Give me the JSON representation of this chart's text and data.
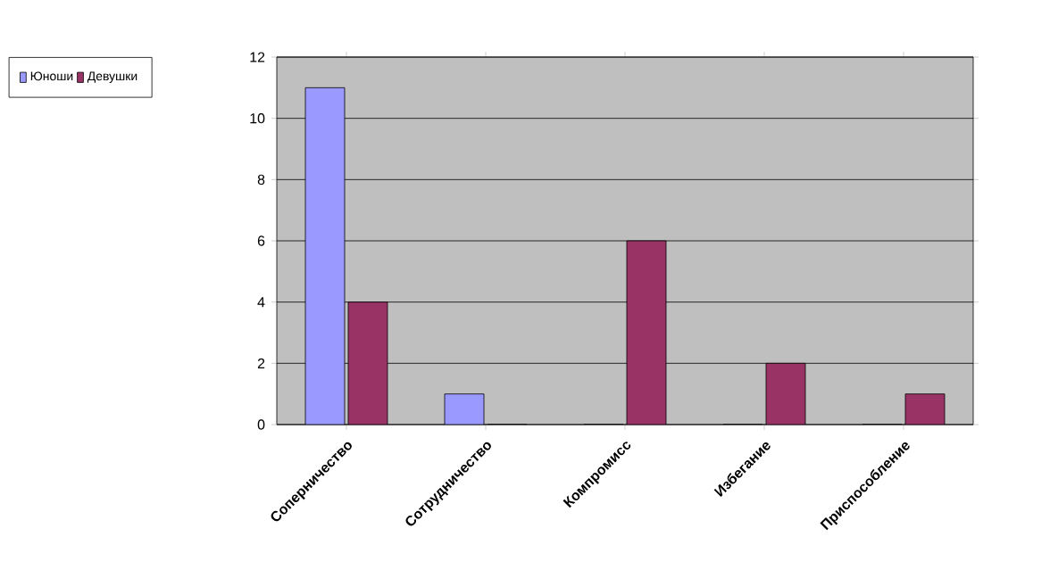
{
  "chart_data": {
    "type": "bar",
    "categories": [
      "Соперничество",
      "Сотрудничество",
      "Компромисс",
      "Избегание",
      "Приспособление"
    ],
    "series": [
      {
        "name": "Юноши",
        "color": "#9999ff",
        "values": [
          11,
          1,
          0,
          0,
          0
        ]
      },
      {
        "name": "Девушки",
        "color": "#993366",
        "values": [
          4,
          0,
          6,
          2,
          1
        ]
      }
    ],
    "ylim": [
      0,
      12
    ],
    "yticks": [
      0,
      2,
      4,
      6,
      8,
      10,
      12
    ],
    "grid": "y",
    "legend": "left"
  }
}
